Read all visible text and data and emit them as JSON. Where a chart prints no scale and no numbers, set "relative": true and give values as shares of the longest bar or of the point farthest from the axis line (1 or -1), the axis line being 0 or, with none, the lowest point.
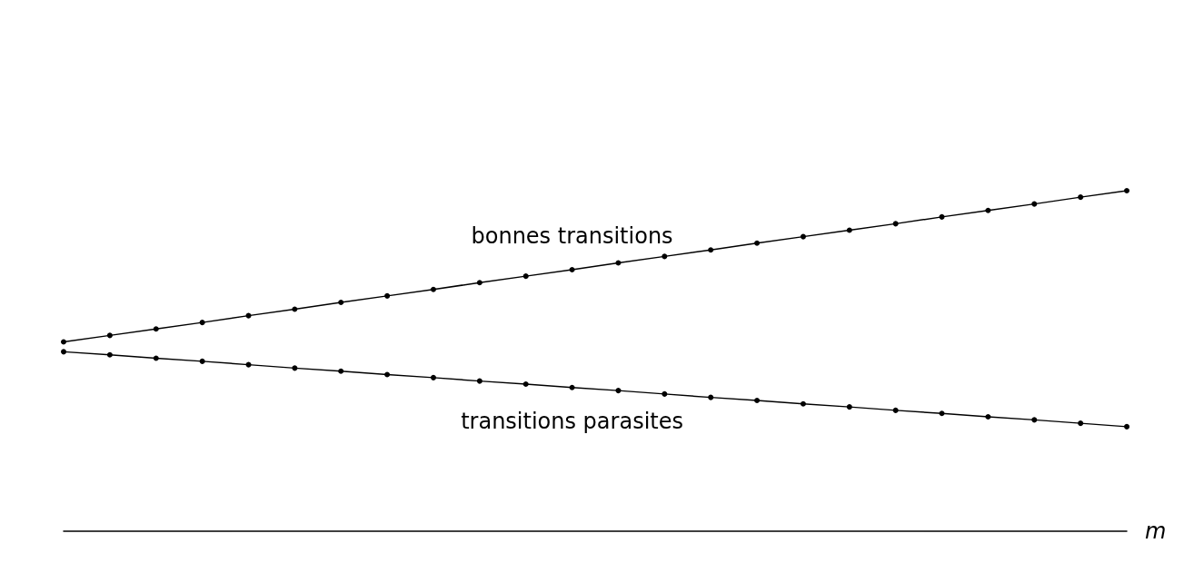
{
  "chart_data": {
    "type": "line",
    "relative": true,
    "xlabel": "m",
    "marker": "circle",
    "line_style": "solid",
    "grid": false,
    "legend": false,
    "categories": [
      null,
      null,
      null,
      null,
      null,
      null,
      null,
      null,
      null,
      null,
      null,
      null,
      null,
      null,
      null,
      null,
      null,
      null,
      null,
      null,
      null,
      null,
      null,
      null
    ],
    "series": [
      {
        "name": "bonnes transitions",
        "color": "#000000",
        "values": [
          0.556,
          0.575,
          0.594,
          0.613,
          0.633,
          0.652,
          0.672,
          0.691,
          0.71,
          0.73,
          0.749,
          0.768,
          0.788,
          0.807,
          0.826,
          0.846,
          0.865,
          0.884,
          0.903,
          0.923,
          0.942,
          0.961,
          0.981,
          1
        ]
      },
      {
        "name": "transitions parasites",
        "color": "#000000",
        "values": [
          0.527,
          0.518,
          0.508,
          0.499,
          0.489,
          0.479,
          0.47,
          0.46,
          0.451,
          0.441,
          0.432,
          0.422,
          0.413,
          0.403,
          0.393,
          0.384,
          0.374,
          0.365,
          0.355,
          0.346,
          0.336,
          0.327,
          0.317,
          0.307
        ]
      }
    ]
  }
}
